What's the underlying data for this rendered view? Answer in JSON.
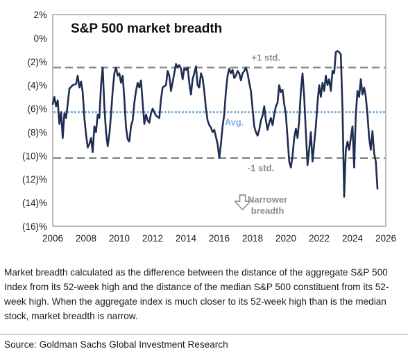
{
  "chart_data": {
    "type": "line",
    "title": "S&P 500 market breadth",
    "xlim": [
      2006,
      2026
    ],
    "ylim": [
      -16,
      2
    ],
    "x_ticks": [
      2006,
      2008,
      2010,
      2012,
      2014,
      2016,
      2018,
      2020,
      2022,
      2024,
      2026
    ],
    "y_ticks": [
      2,
      0,
      -2,
      -4,
      -6,
      -8,
      -10,
      -12,
      -14,
      -16
    ],
    "y_tick_labels": [
      "2%",
      "0%",
      "(2)%",
      "(4)%",
      "(6)%",
      "(8)%",
      "(10)%",
      "(12)%",
      "(14)%",
      "(16)%"
    ],
    "grid": false,
    "series": [
      {
        "color": "#1f2d52",
        "points": [
          [
            2006.0,
            -5.6
          ],
          [
            2006.1,
            -5.0
          ],
          [
            2006.2,
            -5.8
          ],
          [
            2006.3,
            -5.3
          ],
          [
            2006.4,
            -7.3
          ],
          [
            2006.5,
            -6.3
          ],
          [
            2006.6,
            -8.5
          ],
          [
            2006.7,
            -6.4
          ],
          [
            2006.8,
            -6.8
          ],
          [
            2006.9,
            -5.6
          ],
          [
            2007.0,
            -4.3
          ],
          [
            2007.2,
            -4.0
          ],
          [
            2007.4,
            -3.9
          ],
          [
            2007.5,
            -3.2
          ],
          [
            2007.6,
            -4.2
          ],
          [
            2007.7,
            -3.7
          ],
          [
            2007.8,
            -4.6
          ],
          [
            2007.9,
            -6.8
          ],
          [
            2008.0,
            -8.2
          ],
          [
            2008.1,
            -9.3
          ],
          [
            2008.2,
            -9.0
          ],
          [
            2008.3,
            -8.5
          ],
          [
            2008.4,
            -9.7
          ],
          [
            2008.5,
            -7.5
          ],
          [
            2008.6,
            -8.0
          ],
          [
            2008.7,
            -6.5
          ],
          [
            2008.8,
            -6.8
          ],
          [
            2008.9,
            -4.0
          ],
          [
            2009.0,
            -2.5
          ],
          [
            2009.1,
            -5.8
          ],
          [
            2009.2,
            -8.0
          ],
          [
            2009.3,
            -9.2
          ],
          [
            2009.4,
            -8.2
          ],
          [
            2009.5,
            -6.5
          ],
          [
            2009.6,
            -4.5
          ],
          [
            2009.7,
            -3.0
          ],
          [
            2009.8,
            -2.5
          ],
          [
            2009.9,
            -3.2
          ],
          [
            2010.0,
            -3.0
          ],
          [
            2010.1,
            -3.8
          ],
          [
            2010.2,
            -3.2
          ],
          [
            2010.3,
            -5.2
          ],
          [
            2010.4,
            -7.6
          ],
          [
            2010.5,
            -8.6
          ],
          [
            2010.6,
            -8.8
          ],
          [
            2010.7,
            -7.5
          ],
          [
            2010.8,
            -7.0
          ],
          [
            2010.9,
            -5.5
          ],
          [
            2011.0,
            -4.5
          ],
          [
            2011.1,
            -3.8
          ],
          [
            2011.2,
            -4.2
          ],
          [
            2011.3,
            -3.6
          ],
          [
            2011.4,
            -5.5
          ],
          [
            2011.5,
            -7.3
          ],
          [
            2011.6,
            -6.5
          ],
          [
            2011.7,
            -7.0
          ],
          [
            2011.8,
            -7.2
          ],
          [
            2011.9,
            -6.4
          ],
          [
            2012.0,
            -6.0
          ],
          [
            2012.2,
            -6.6
          ],
          [
            2012.4,
            -6.8
          ],
          [
            2012.5,
            -5.2
          ],
          [
            2012.6,
            -4.2
          ],
          [
            2012.8,
            -4.0
          ],
          [
            2012.9,
            -2.8
          ],
          [
            2013.0,
            -3.2
          ],
          [
            2013.1,
            -4.5
          ],
          [
            2013.3,
            -3.0
          ],
          [
            2013.4,
            -2.2
          ],
          [
            2013.5,
            -2.5
          ],
          [
            2013.6,
            -2.3
          ],
          [
            2013.7,
            -2.6
          ],
          [
            2013.8,
            -3.5
          ],
          [
            2013.9,
            -2.6
          ],
          [
            2014.0,
            -2.7
          ],
          [
            2014.1,
            -2.5
          ],
          [
            2014.2,
            -3.8
          ],
          [
            2014.3,
            -4.8
          ],
          [
            2014.4,
            -3.5
          ],
          [
            2014.5,
            -3.0
          ],
          [
            2014.6,
            -2.4
          ],
          [
            2014.7,
            -4.0
          ],
          [
            2014.8,
            -4.2
          ],
          [
            2014.9,
            -3.0
          ],
          [
            2015.0,
            -3.4
          ],
          [
            2015.1,
            -4.5
          ],
          [
            2015.2,
            -6.0
          ],
          [
            2015.3,
            -7.0
          ],
          [
            2015.4,
            -7.4
          ],
          [
            2015.5,
            -7.6
          ],
          [
            2015.6,
            -8.0
          ],
          [
            2015.7,
            -7.8
          ],
          [
            2015.8,
            -8.4
          ],
          [
            2015.9,
            -9.0
          ],
          [
            2016.0,
            -10.2
          ],
          [
            2016.1,
            -9.0
          ],
          [
            2016.2,
            -7.5
          ],
          [
            2016.3,
            -6.5
          ],
          [
            2016.4,
            -4.5
          ],
          [
            2016.5,
            -3.2
          ],
          [
            2016.6,
            -2.6
          ],
          [
            2016.7,
            -3.0
          ],
          [
            2016.8,
            -2.7
          ],
          [
            2016.9,
            -3.4
          ],
          [
            2017.0,
            -3.2
          ],
          [
            2017.1,
            -2.8
          ],
          [
            2017.2,
            -3.0
          ],
          [
            2017.3,
            -3.6
          ],
          [
            2017.4,
            -3.0
          ],
          [
            2017.5,
            -2.8
          ],
          [
            2017.6,
            -2.5
          ],
          [
            2017.7,
            -3.0
          ],
          [
            2017.8,
            -3.8
          ],
          [
            2017.9,
            -4.5
          ],
          [
            2018.0,
            -6.0
          ],
          [
            2018.1,
            -7.5
          ],
          [
            2018.2,
            -8.0
          ],
          [
            2018.3,
            -8.3
          ],
          [
            2018.4,
            -7.8
          ],
          [
            2018.5,
            -7.0
          ],
          [
            2018.6,
            -6.6
          ],
          [
            2018.7,
            -5.8
          ],
          [
            2018.8,
            -7.0
          ],
          [
            2018.9,
            -7.8
          ],
          [
            2019.0,
            -7.2
          ],
          [
            2019.1,
            -6.8
          ],
          [
            2019.2,
            -7.4
          ],
          [
            2019.3,
            -6.5
          ],
          [
            2019.4,
            -5.8
          ],
          [
            2019.5,
            -5.5
          ],
          [
            2019.6,
            -4.0
          ],
          [
            2019.7,
            -4.6
          ],
          [
            2019.8,
            -4.4
          ],
          [
            2019.9,
            -5.6
          ],
          [
            2020.0,
            -6.5
          ],
          [
            2020.1,
            -8.5
          ],
          [
            2020.2,
            -10.5
          ],
          [
            2020.3,
            -11.0
          ],
          [
            2020.4,
            -10.0
          ],
          [
            2020.5,
            -8.5
          ],
          [
            2020.6,
            -7.7
          ],
          [
            2020.7,
            -8.5
          ],
          [
            2020.8,
            -7.0
          ],
          [
            2020.9,
            -4.5
          ],
          [
            2021.0,
            -3.0
          ],
          [
            2021.1,
            -5.0
          ],
          [
            2021.2,
            -8.0
          ],
          [
            2021.3,
            -10.8
          ],
          [
            2021.4,
            -9.5
          ],
          [
            2021.5,
            -8.0
          ],
          [
            2021.6,
            -10.5
          ],
          [
            2021.7,
            -9.0
          ],
          [
            2021.8,
            -7.5
          ],
          [
            2021.9,
            -5.5
          ],
          [
            2022.0,
            -4.0
          ],
          [
            2022.1,
            -5.0
          ],
          [
            2022.2,
            -3.8
          ],
          [
            2022.3,
            -4.5
          ],
          [
            2022.4,
            -3.2
          ],
          [
            2022.5,
            -4.0
          ],
          [
            2022.6,
            -3.5
          ],
          [
            2022.7,
            -4.5
          ],
          [
            2022.8,
            -2.8
          ],
          [
            2022.9,
            -3.0
          ],
          [
            2023.0,
            -1.2
          ],
          [
            2023.1,
            -1.1
          ],
          [
            2023.2,
            -1.2
          ],
          [
            2023.3,
            -1.4
          ],
          [
            2023.4,
            -6.0
          ],
          [
            2023.5,
            -13.5
          ],
          [
            2023.6,
            -9.5
          ],
          [
            2023.7,
            -8.8
          ],
          [
            2023.8,
            -9.5
          ],
          [
            2023.9,
            -8.5
          ],
          [
            2024.0,
            -7.5
          ],
          [
            2024.1,
            -11.0
          ],
          [
            2024.2,
            -6.5
          ],
          [
            2024.3,
            -4.5
          ],
          [
            2024.4,
            -5.0
          ],
          [
            2024.5,
            -3.5
          ],
          [
            2024.6,
            -4.8
          ],
          [
            2024.7,
            -4.2
          ],
          [
            2024.8,
            -5.0
          ],
          [
            2024.9,
            -6.5
          ],
          [
            2025.0,
            -8.5
          ],
          [
            2025.1,
            -9.5
          ],
          [
            2025.2,
            -7.9
          ],
          [
            2025.3,
            -9.8
          ],
          [
            2025.4,
            -10.5
          ],
          [
            2025.5,
            -12.8
          ]
        ]
      }
    ],
    "reference_lines": [
      {
        "label": "+1 std.",
        "y": -2.5,
        "color": "#8c8c8c",
        "style": "dashed"
      },
      {
        "label": "Avg.",
        "y": -6.3,
        "color": "#7fb2de",
        "style": "dotted"
      },
      {
        "label": "-1 std.",
        "y": -10.2,
        "color": "#8c8c8c",
        "style": "dashed"
      }
    ],
    "annotation": {
      "lines": [
        "Narrower",
        "breadth"
      ],
      "x": 2018.9,
      "y": -14.1,
      "color": "#8c8c8c",
      "arrow": "down"
    }
  },
  "caption": "Market breadth calculated as the difference between the distance of the aggregate S&P 500 Index from its 52-week high and the distance of the median S&P 500 constituent from its 52-week high. When the aggregate index is much closer to its 52-week high than is the median stock, market breadth is narrow.",
  "source": "Source: Goldman Sachs Global Investment Research"
}
